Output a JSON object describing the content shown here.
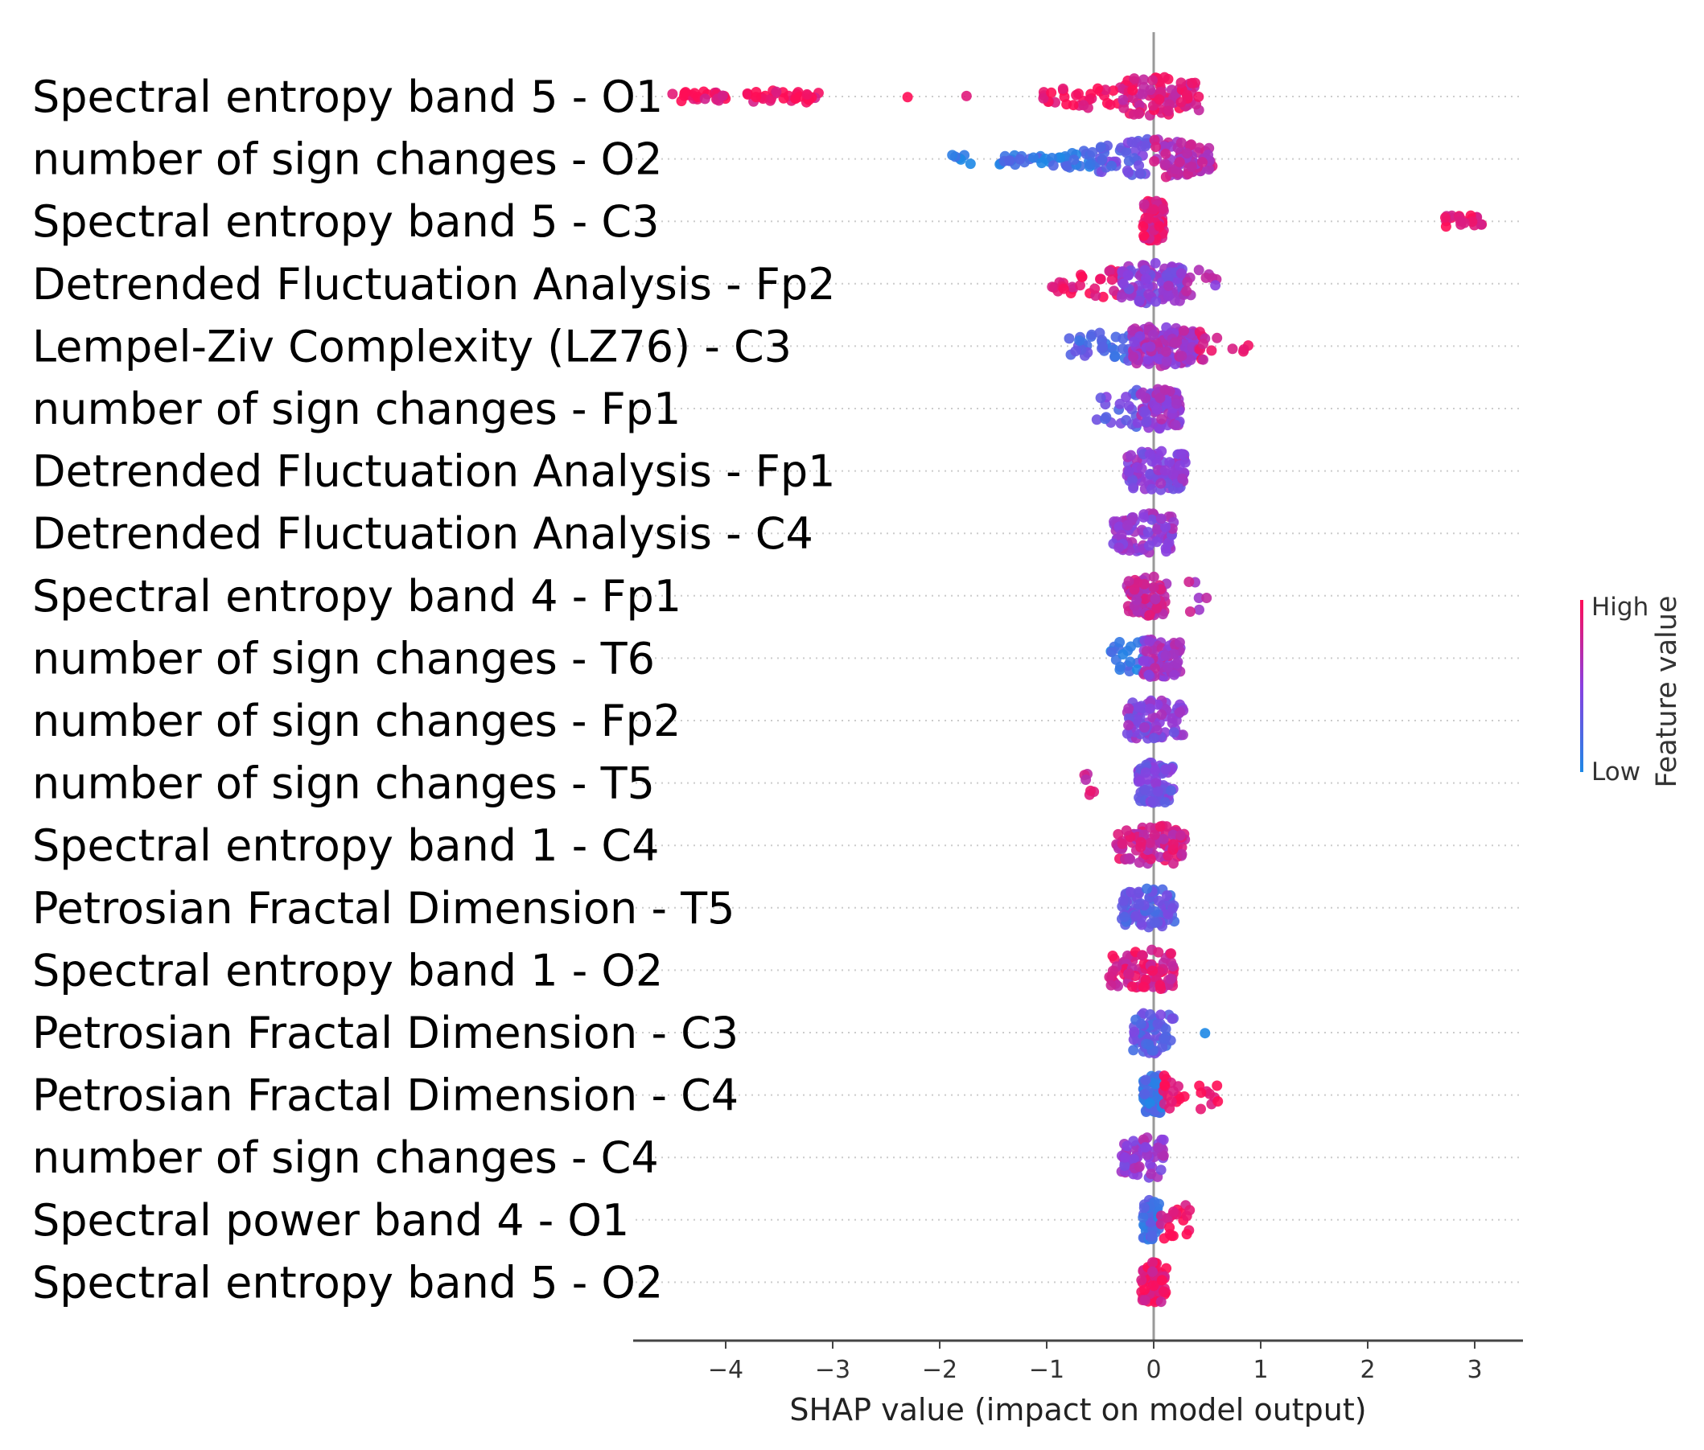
{
  "chart_data": {
    "type": "scatter",
    "subtype": "shap-beeswarm-summary",
    "xlabel": "SHAP value (impact on model output)",
    "xlim": [
      -4.9,
      3.5
    ],
    "xticks": [
      -4,
      -3,
      -2,
      -1,
      0,
      1,
      2,
      3
    ],
    "xtick_labels": [
      "−4",
      "−3",
      "−2",
      "−1",
      "0",
      "1",
      "2",
      "3"
    ],
    "grid": "dotted horizontal row guides",
    "legend_position": "right",
    "colorbar": {
      "title": "Feature value",
      "high_label": "High",
      "low_label": "Low",
      "low_color": "#1e88e5",
      "high_color": "#ff0d57"
    },
    "features": [
      {
        "name": "Spectral entropy band 5 - O1",
        "min": -4.5,
        "max": 0.45,
        "clusters": [
          {
            "from": -4.5,
            "to": -4.0,
            "n": 25,
            "feature_value": 0.95
          },
          {
            "from": -3.8,
            "to": -3.1,
            "n": 30,
            "feature_value": 0.95
          },
          {
            "from": -2.3,
            "to": -2.3,
            "n": 1,
            "feature_value": 0.95
          },
          {
            "from": -1.75,
            "to": -1.75,
            "n": 1,
            "feature_value": 0.95
          },
          {
            "from": -1.05,
            "to": -0.3,
            "n": 30,
            "feature_value": 0.92
          },
          {
            "from": -0.3,
            "to": 0.45,
            "n": 85,
            "feature_value": 0.85
          }
        ]
      },
      {
        "name": "number of sign changes - O2",
        "min": -1.95,
        "max": 0.55,
        "clusters": [
          {
            "from": -1.95,
            "to": -1.65,
            "n": 6,
            "feature_value": 0.05
          },
          {
            "from": -1.45,
            "to": -0.5,
            "n": 45,
            "feature_value": 0.12
          },
          {
            "from": -0.5,
            "to": 0.0,
            "n": 40,
            "feature_value": 0.35
          },
          {
            "from": 0.0,
            "to": 0.55,
            "n": 75,
            "feature_value": 0.7
          }
        ]
      },
      {
        "name": "Spectral entropy band 5 - C3",
        "min": -0.1,
        "max": 3.1,
        "clusters": [
          {
            "from": -0.1,
            "to": 0.1,
            "n": 70,
            "feature_value": 0.88
          },
          {
            "from": 2.72,
            "to": 3.1,
            "n": 20,
            "feature_value": 0.95
          }
        ]
      },
      {
        "name": "Detrended Fluctuation Analysis - Fp2",
        "min": -0.95,
        "max": 0.65,
        "clusters": [
          {
            "from": -0.95,
            "to": -0.3,
            "n": 30,
            "feature_value": 0.92
          },
          {
            "from": -0.3,
            "to": 0.3,
            "n": 110,
            "feature_value": 0.5
          },
          {
            "from": 0.3,
            "to": 0.65,
            "n": 10,
            "feature_value": 0.6
          }
        ]
      },
      {
        "name": "Lempel-Ziv Complexity (LZ76) - C3",
        "min": -0.8,
        "max": 0.9,
        "clusters": [
          {
            "from": -0.8,
            "to": -0.2,
            "n": 35,
            "feature_value": 0.25
          },
          {
            "from": -0.2,
            "to": 0.4,
            "n": 140,
            "feature_value": 0.6
          },
          {
            "from": 0.4,
            "to": 0.9,
            "n": 14,
            "feature_value": 0.85
          }
        ]
      },
      {
        "name": "number of sign changes - Fp1",
        "min": -0.55,
        "max": 0.25,
        "clusters": [
          {
            "from": -0.55,
            "to": -0.15,
            "n": 20,
            "feature_value": 0.35
          },
          {
            "from": -0.15,
            "to": 0.25,
            "n": 90,
            "feature_value": 0.55
          }
        ]
      },
      {
        "name": "Detrended Fluctuation Analysis - Fp1",
        "min": -0.25,
        "max": 0.3,
        "clusters": [
          {
            "from": -0.25,
            "to": 0.3,
            "n": 90,
            "feature_value": 0.5
          }
        ]
      },
      {
        "name": "Detrended Fluctuation Analysis - C4",
        "min": -0.4,
        "max": 0.2,
        "clusters": [
          {
            "from": -0.4,
            "to": 0.2,
            "n": 90,
            "feature_value": 0.55
          }
        ]
      },
      {
        "name": "Spectral entropy band 4 - Fp1",
        "min": -0.25,
        "max": 0.5,
        "clusters": [
          {
            "from": -0.25,
            "to": 0.12,
            "n": 80,
            "feature_value": 0.75
          },
          {
            "from": 0.25,
            "to": 0.5,
            "n": 6,
            "feature_value": 0.7
          }
        ]
      },
      {
        "name": "number of sign changes - T6",
        "min": -0.4,
        "max": 0.25,
        "clusters": [
          {
            "from": -0.4,
            "to": -0.1,
            "n": 20,
            "feature_value": 0.1
          },
          {
            "from": -0.1,
            "to": 0.25,
            "n": 70,
            "feature_value": 0.6
          }
        ]
      },
      {
        "name": "number of sign changes - Fp2",
        "min": -0.25,
        "max": 0.28,
        "clusters": [
          {
            "from": -0.25,
            "to": 0.28,
            "n": 80,
            "feature_value": 0.5
          }
        ]
      },
      {
        "name": "number of sign changes - T5",
        "min": -0.65,
        "max": 0.2,
        "clusters": [
          {
            "from": -0.65,
            "to": -0.55,
            "n": 6,
            "feature_value": 0.8
          },
          {
            "from": -0.15,
            "to": 0.2,
            "n": 70,
            "feature_value": 0.4
          }
        ]
      },
      {
        "name": "Spectral entropy band 1 - C4",
        "min": -0.35,
        "max": 0.3,
        "clusters": [
          {
            "from": -0.35,
            "to": 0.3,
            "n": 85,
            "feature_value": 0.8
          }
        ]
      },
      {
        "name": "Petrosian Fractal Dimension - T5",
        "min": -0.3,
        "max": 0.2,
        "clusters": [
          {
            "from": -0.3,
            "to": 0.2,
            "n": 80,
            "feature_value": 0.3
          }
        ]
      },
      {
        "name": "Spectral entropy band 1 - O2",
        "min": -0.42,
        "max": 0.2,
        "clusters": [
          {
            "from": -0.42,
            "to": 0.2,
            "n": 85,
            "feature_value": 0.85
          }
        ]
      },
      {
        "name": "Petrosian Fractal Dimension - C3",
        "min": -0.2,
        "max": 0.5,
        "clusters": [
          {
            "from": -0.2,
            "to": 0.2,
            "n": 60,
            "feature_value": 0.3
          },
          {
            "from": 0.48,
            "to": 0.48,
            "n": 1,
            "feature_value": 0.05
          }
        ]
      },
      {
        "name": "Petrosian Fractal Dimension - C4",
        "min": -0.1,
        "max": 0.6,
        "clusters": [
          {
            "from": -0.1,
            "to": 0.08,
            "n": 60,
            "feature_value": 0.15
          },
          {
            "from": 0.08,
            "to": 0.6,
            "n": 25,
            "feature_value": 0.95
          }
        ]
      },
      {
        "name": "number of sign changes - C4",
        "min": -0.3,
        "max": 0.1,
        "clusters": [
          {
            "from": -0.3,
            "to": 0.1,
            "n": 60,
            "feature_value": 0.55
          }
        ]
      },
      {
        "name": "Spectral power band 4 - O1",
        "min": -0.1,
        "max": 0.35,
        "clusters": [
          {
            "from": -0.1,
            "to": 0.05,
            "n": 50,
            "feature_value": 0.2
          },
          {
            "from": 0.05,
            "to": 0.35,
            "n": 20,
            "feature_value": 0.9
          }
        ]
      },
      {
        "name": "Spectral entropy band 5 - O2",
        "min": -0.12,
        "max": 0.12,
        "clusters": [
          {
            "from": -0.12,
            "to": 0.12,
            "n": 60,
            "feature_value": 0.9
          }
        ]
      }
    ]
  }
}
